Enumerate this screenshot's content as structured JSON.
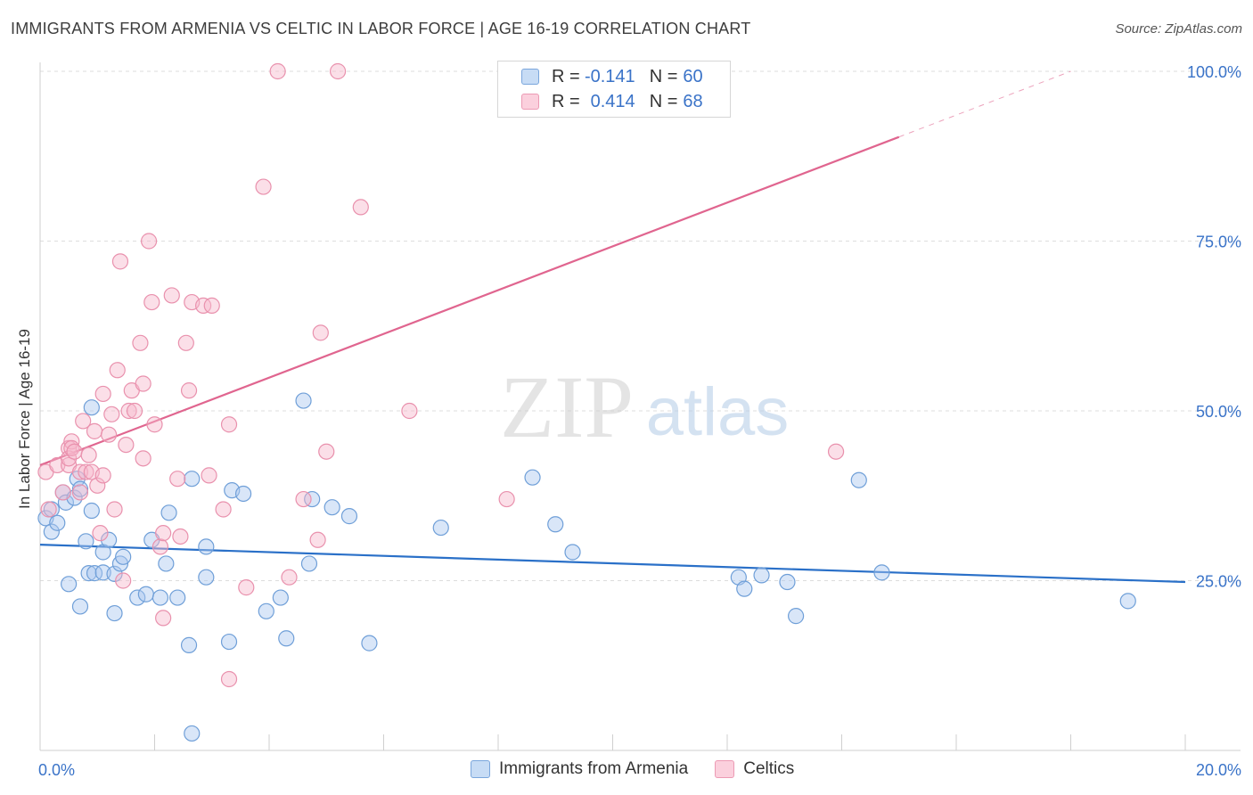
{
  "header": {
    "title": "IMMIGRANTS FROM ARMENIA VS CELTIC IN LABOR FORCE | AGE 16-19 CORRELATION CHART",
    "source": "Source: ZipAtlas.com"
  },
  "legend": {
    "r_label": "R =",
    "n_label": "N =",
    "series": [
      {
        "name": "Immigrants from Armenia",
        "r": "-0.141",
        "n": "60"
      },
      {
        "name": "Celtics",
        "r": "0.414",
        "n": "68"
      }
    ]
  },
  "watermark": {
    "zip": "ZIP",
    "atlas": "atlas"
  },
  "colors": {
    "blue_fill": "#aac8f0",
    "blue_stroke": "#6f9fd8",
    "blue_line": "#2a70c8",
    "pink_fill": "#f6b8cc",
    "pink_stroke": "#e991ad",
    "pink_line": "#e0658f",
    "axis_label": "#3a73c8",
    "grid": "#dddddd"
  },
  "chart_data": {
    "type": "scatter",
    "title": "IMMIGRANTS FROM ARMENIA VS CELTIC IN LABOR FORCE | AGE 16-19 CORRELATION CHART",
    "xlabel": "",
    "ylabel": "In Labor Force | Age 16-19",
    "xlim": [
      0,
      20
    ],
    "ylim": [
      0,
      102
    ],
    "x_tick_labels": [
      {
        "value": 0,
        "label": "0.0%"
      },
      {
        "value": 20,
        "label": "20.0%"
      }
    ],
    "y_tick_labels": [
      {
        "value": 25,
        "label": "25.0%"
      },
      {
        "value": 50,
        "label": "50.0%"
      },
      {
        "value": 75,
        "label": "75.0%"
      },
      {
        "value": 100,
        "label": "100.0%"
      }
    ],
    "x_minor_ticks": [
      2,
      4,
      6,
      8,
      10,
      12,
      14,
      16,
      18
    ],
    "series": [
      {
        "name": "Immigrants from Armenia",
        "color": "blue",
        "trend": {
          "x0": 0,
          "y0": 30.3,
          "x1": 20,
          "y1": 24.8,
          "dash_from": null
        },
        "points": [
          [
            0.1,
            34.2
          ],
          [
            0.2,
            32.2
          ],
          [
            0.2,
            35.5
          ],
          [
            0.3,
            33.5
          ],
          [
            0.4,
            38
          ],
          [
            0.45,
            36.5
          ],
          [
            0.5,
            24.5
          ],
          [
            0.6,
            37.2
          ],
          [
            0.65,
            40
          ],
          [
            0.7,
            38.5
          ],
          [
            0.7,
            21.2
          ],
          [
            0.8,
            30.8
          ],
          [
            0.85,
            26.1
          ],
          [
            0.9,
            50.5
          ],
          [
            0.9,
            35.3
          ],
          [
            0.95,
            26.1
          ],
          [
            1.1,
            26.2
          ],
          [
            1.1,
            29.2
          ],
          [
            1.2,
            31
          ],
          [
            1.3,
            26
          ],
          [
            1.3,
            20.2
          ],
          [
            1.4,
            27.5
          ],
          [
            1.45,
            28.5
          ],
          [
            1.7,
            22.5
          ],
          [
            1.85,
            23
          ],
          [
            1.95,
            31
          ],
          [
            2.1,
            22.5
          ],
          [
            2.2,
            27.5
          ],
          [
            2.25,
            35
          ],
          [
            2.4,
            22.5
          ],
          [
            2.6,
            15.5
          ],
          [
            2.65,
            40
          ],
          [
            2.65,
            2.5
          ],
          [
            2.9,
            30
          ],
          [
            2.9,
            25.5
          ],
          [
            3.3,
            16
          ],
          [
            3.35,
            38.3
          ],
          [
            3.55,
            37.8
          ],
          [
            3.95,
            20.5
          ],
          [
            4.2,
            22.5
          ],
          [
            4.3,
            16.5
          ],
          [
            4.6,
            51.5
          ],
          [
            4.7,
            27.5
          ],
          [
            4.75,
            37
          ],
          [
            5.1,
            35.8
          ],
          [
            5.4,
            34.5
          ],
          [
            5.75,
            15.8
          ],
          [
            7.0,
            32.8
          ],
          [
            8.6,
            40.2
          ],
          [
            9.0,
            33.3
          ],
          [
            9.3,
            29.2
          ],
          [
            12.2,
            25.5
          ],
          [
            12.3,
            23.8
          ],
          [
            12.6,
            25.8
          ],
          [
            13.05,
            24.8
          ],
          [
            13.2,
            19.8
          ],
          [
            14.3,
            39.8
          ],
          [
            14.7,
            26.2
          ],
          [
            19.0,
            22
          ]
        ]
      },
      {
        "name": "Celtics",
        "color": "pink",
        "trend": {
          "x0": 0,
          "y0": 42,
          "x1": 18,
          "y1": 100,
          "dash_from": 15
        },
        "points": [
          [
            0.1,
            41
          ],
          [
            0.15,
            35.5
          ],
          [
            0.3,
            42
          ],
          [
            0.4,
            38
          ],
          [
            0.5,
            42
          ],
          [
            0.5,
            44.5
          ],
          [
            0.5,
            43
          ],
          [
            0.55,
            45.5
          ],
          [
            0.55,
            44.5
          ],
          [
            0.6,
            44
          ],
          [
            0.7,
            38
          ],
          [
            0.7,
            41
          ],
          [
            0.75,
            48.5
          ],
          [
            0.8,
            41
          ],
          [
            0.85,
            43.5
          ],
          [
            0.9,
            41
          ],
          [
            0.95,
            47
          ],
          [
            1.0,
            39
          ],
          [
            1.05,
            32
          ],
          [
            1.1,
            52.5
          ],
          [
            1.1,
            40.5
          ],
          [
            1.2,
            46.5
          ],
          [
            1.25,
            49.5
          ],
          [
            1.3,
            35.5
          ],
          [
            1.35,
            56
          ],
          [
            1.4,
            72
          ],
          [
            1.45,
            25
          ],
          [
            1.5,
            45
          ],
          [
            1.55,
            50
          ],
          [
            1.6,
            53
          ],
          [
            1.65,
            50
          ],
          [
            1.75,
            60
          ],
          [
            1.8,
            43
          ],
          [
            1.8,
            54
          ],
          [
            1.9,
            75
          ],
          [
            1.95,
            66
          ],
          [
            2.0,
            48
          ],
          [
            2.1,
            30
          ],
          [
            2.15,
            32
          ],
          [
            2.15,
            19.5
          ],
          [
            2.3,
            67
          ],
          [
            2.4,
            40
          ],
          [
            2.45,
            31.5
          ],
          [
            2.55,
            60
          ],
          [
            2.6,
            53
          ],
          [
            2.65,
            66
          ],
          [
            2.85,
            65.5
          ],
          [
            2.95,
            40.5
          ],
          [
            3.0,
            65.5
          ],
          [
            3.2,
            35.5
          ],
          [
            3.3,
            48
          ],
          [
            3.3,
            10.5
          ],
          [
            3.6,
            24
          ],
          [
            3.9,
            83
          ],
          [
            4.15,
            100
          ],
          [
            4.35,
            25.5
          ],
          [
            4.6,
            37
          ],
          [
            4.85,
            31
          ],
          [
            4.9,
            61.5
          ],
          [
            5.0,
            44
          ],
          [
            5.2,
            100
          ],
          [
            5.6,
            80
          ],
          [
            6.45,
            50
          ],
          [
            8.15,
            37
          ],
          [
            13.9,
            44
          ]
        ]
      }
    ]
  }
}
